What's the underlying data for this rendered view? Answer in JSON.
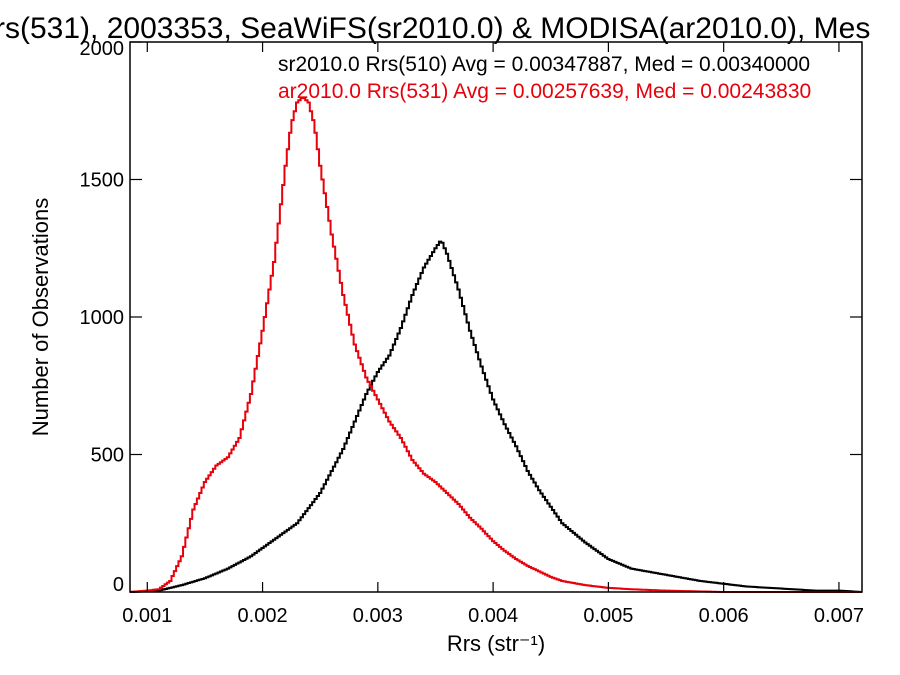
{
  "chart_data": {
    "type": "line",
    "title": "rs(531), 2003353, SeaWiFS(sr2010.0) & MODISA(ar2010.0), Mes",
    "xlabel": "Rrs (str⁻¹)",
    "ylabel": "Number of Observations",
    "xlim": [
      0.00085,
      0.0072
    ],
    "ylim": [
      0,
      2000
    ],
    "x_ticks": [
      "0.001",
      "0.002",
      "0.003",
      "0.004",
      "0.005",
      "0.006",
      "0.007"
    ],
    "y_ticks": [
      "0",
      "500",
      "1000",
      "1500",
      "2000"
    ],
    "grid": false,
    "legend_placement": "top-right",
    "series": [
      {
        "label": "sr2010.0 Rrs(510) Avg = 0.00347887, Med = 0.00340000",
        "color": "#000000",
        "points": [
          [
            0.00085,
            0
          ],
          [
            0.0011,
            5
          ],
          [
            0.0013,
            25
          ],
          [
            0.0015,
            50
          ],
          [
            0.0017,
            85
          ],
          [
            0.0019,
            130
          ],
          [
            0.0021,
            190
          ],
          [
            0.0023,
            250
          ],
          [
            0.0025,
            360
          ],
          [
            0.0027,
            520
          ],
          [
            0.0029,
            720
          ],
          [
            0.003,
            800
          ],
          [
            0.0031,
            860
          ],
          [
            0.0032,
            960
          ],
          [
            0.0033,
            1080
          ],
          [
            0.0034,
            1180
          ],
          [
            0.0035,
            1250
          ],
          [
            0.00355,
            1280
          ],
          [
            0.0036,
            1230
          ],
          [
            0.0037,
            1100
          ],
          [
            0.0038,
            950
          ],
          [
            0.0039,
            820
          ],
          [
            0.004,
            700
          ],
          [
            0.0041,
            610
          ],
          [
            0.0042,
            530
          ],
          [
            0.0043,
            440
          ],
          [
            0.0044,
            370
          ],
          [
            0.0045,
            310
          ],
          [
            0.0046,
            250
          ],
          [
            0.0047,
            215
          ],
          [
            0.0048,
            180
          ],
          [
            0.005,
            120
          ],
          [
            0.0052,
            85
          ],
          [
            0.0054,
            70
          ],
          [
            0.0056,
            55
          ],
          [
            0.0058,
            40
          ],
          [
            0.006,
            30
          ],
          [
            0.0062,
            20
          ],
          [
            0.0064,
            15
          ],
          [
            0.0066,
            10
          ],
          [
            0.0068,
            5
          ],
          [
            0.007,
            5
          ],
          [
            0.0072,
            0
          ]
        ]
      },
      {
        "label": "ar2010.0 Rrs(531) Avg = 0.00257639, Med = 0.00243830",
        "color": "#e8000b",
        "points": [
          [
            0.00085,
            0
          ],
          [
            0.001,
            5
          ],
          [
            0.0011,
            10
          ],
          [
            0.0012,
            40
          ],
          [
            0.0013,
            130
          ],
          [
            0.0014,
            300
          ],
          [
            0.0015,
            400
          ],
          [
            0.0016,
            460
          ],
          [
            0.0017,
            490
          ],
          [
            0.0018,
            560
          ],
          [
            0.0019,
            720
          ],
          [
            0.002,
            950
          ],
          [
            0.0021,
            1200
          ],
          [
            0.0022,
            1550
          ],
          [
            0.00225,
            1700
          ],
          [
            0.0023,
            1780
          ],
          [
            0.00235,
            1800
          ],
          [
            0.0024,
            1780
          ],
          [
            0.00245,
            1700
          ],
          [
            0.0025,
            1550
          ],
          [
            0.0026,
            1300
          ],
          [
            0.0027,
            1080
          ],
          [
            0.0028,
            900
          ],
          [
            0.0029,
            780
          ],
          [
            0.003,
            700
          ],
          [
            0.0031,
            620
          ],
          [
            0.0032,
            560
          ],
          [
            0.0033,
            480
          ],
          [
            0.0034,
            430
          ],
          [
            0.0035,
            400
          ],
          [
            0.0036,
            360
          ],
          [
            0.0037,
            320
          ],
          [
            0.0038,
            270
          ],
          [
            0.0039,
            230
          ],
          [
            0.004,
            185
          ],
          [
            0.0041,
            150
          ],
          [
            0.0042,
            120
          ],
          [
            0.0043,
            95
          ],
          [
            0.0044,
            75
          ],
          [
            0.0045,
            55
          ],
          [
            0.0046,
            40
          ],
          [
            0.0048,
            25
          ],
          [
            0.005,
            15
          ],
          [
            0.0052,
            10
          ],
          [
            0.0055,
            5
          ],
          [
            0.006,
            0
          ],
          [
            0.0072,
            0
          ]
        ]
      }
    ]
  }
}
